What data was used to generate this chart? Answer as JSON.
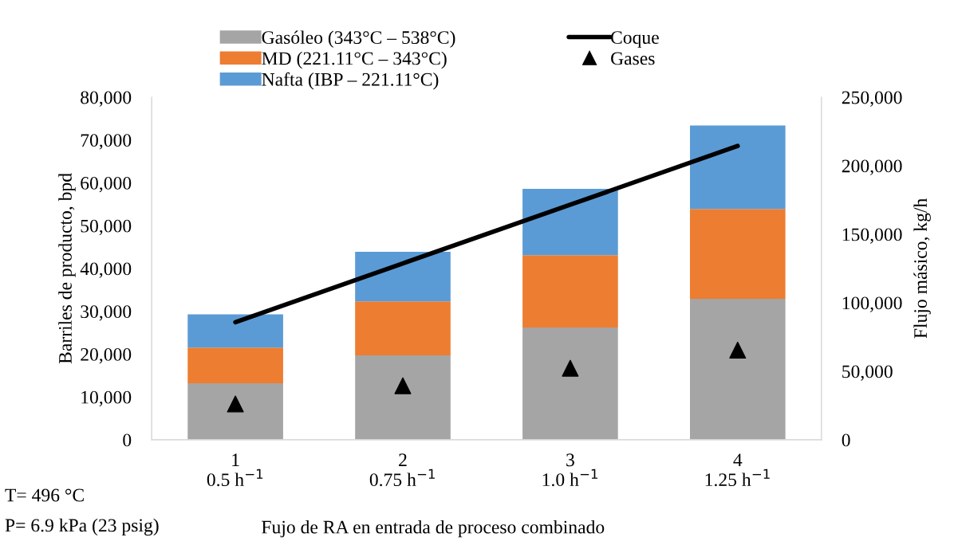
{
  "chart_data": {
    "type": "bar",
    "stacked": true,
    "categories": [
      "1\n0.5 h$^{−1}$",
      "2\n0.75 h$^{−1}$",
      "3\n1.0 h$^{−1}$",
      "4\n1.25 h$^{−1}$"
    ],
    "xlabel": "Fujo de RA en entrada de proceso combinado",
    "ylabel": "Barriles de producto, bpd",
    "y2label": "Flujo másico, kg/h",
    "annotations": [
      "T= 496 °C",
      "P= 6.9 kPa (23 psig)"
    ],
    "series": [
      {
        "name": "Gasóleo (343°C – 538°C)",
        "color": "#a5a5a5",
        "values": [
          13200,
          19700,
          26200,
          32900
        ]
      },
      {
        "name": "MD (221.11°C – 343°C)",
        "color": "#ed7d31",
        "values": [
          8300,
          12600,
          16900,
          21000
        ]
      },
      {
        "name": "Nafta (IBP – 221.11°C)",
        "color": "#5b9bd5",
        "values": [
          7800,
          11600,
          15500,
          19500
        ]
      },
      {
        "name": "Coque",
        "type": "line",
        "axis": "y2",
        "color": "#000000",
        "marker": "none",
        "line_style": "solid",
        "values": [
          85800,
          128700,
          171500,
          214400
        ]
      },
      {
        "name": "Gases",
        "type": "scatter",
        "axis": "y2",
        "color": "#000000",
        "marker": "triangle",
        "values": [
          26100,
          39400,
          52200,
          65400
        ]
      }
    ],
    "ylim": [
      0,
      80000
    ],
    "yticks": [
      0,
      {
        "value": 10000,
        "label": "10,000"
      },
      {
        "value": 20000,
        "label": "20,000"
      },
      {
        "value": 30000,
        "label": "30,000"
      },
      {
        "value": 40000,
        "label": "40,000"
      },
      {
        "value": 50000,
        "label": "50,000"
      },
      {
        "value": 60000,
        "label": "60,000"
      },
      {
        "value": 70000,
        "label": "70,000"
      },
      {
        "value": 80000,
        "label": "80,000"
      }
    ],
    "y2lim": [
      0,
      250000
    ],
    "y2ticks": [
      0,
      {
        "value": 50000,
        "label": "50,000"
      },
      {
        "value": 100000,
        "label": "100,000"
      },
      {
        "value": 150000,
        "label": "150,000"
      },
      {
        "value": 200000,
        "label": "200,000"
      },
      {
        "value": 250000,
        "label": "250,000"
      }
    ],
    "grid": false,
    "legend": "top"
  }
}
